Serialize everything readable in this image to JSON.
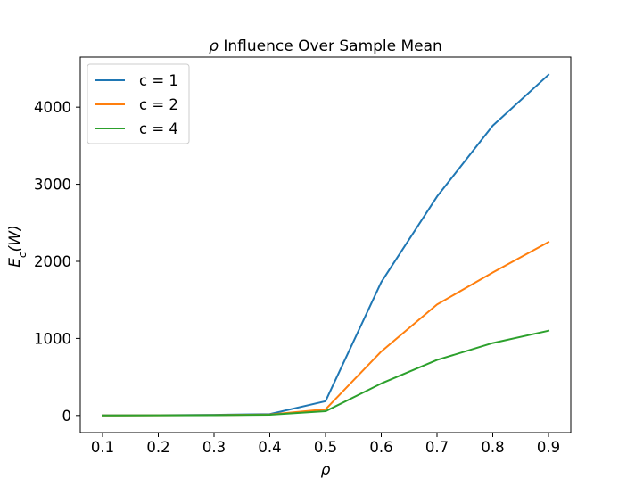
{
  "chart_data": {
    "type": "line",
    "title": "ρ Influence Over Sample Mean",
    "title_symbol": "ρ",
    "title_rest": " Influence Over Sample Mean",
    "xlabel": "ρ",
    "ylabel_base": "E",
    "ylabel_sub": "c",
    "ylabel_arg": "(W)",
    "x": [
      0.1,
      0.2,
      0.3,
      0.4,
      0.5,
      0.6,
      0.7,
      0.8,
      0.9
    ],
    "x_ticks": [
      "0.1",
      "0.2",
      "0.3",
      "0.4",
      "0.5",
      "0.6",
      "0.7",
      "0.8",
      "0.9"
    ],
    "y_ticks": [
      "0",
      "1000",
      "2000",
      "3000",
      "4000"
    ],
    "y_tick_values": [
      0,
      1000,
      2000,
      3000,
      4000
    ],
    "xlim": [
      0.06,
      0.94
    ],
    "ylim": [
      -222,
      4650
    ],
    "grid": false,
    "legend_position": "upper left",
    "series": [
      {
        "name": "c = 1",
        "color": "#1f77b4",
        "values": [
          2,
          4,
          8,
          18,
          185,
          1730,
          2840,
          3760,
          4420
        ]
      },
      {
        "name": "c = 2",
        "color": "#ff7f0e",
        "values": [
          1,
          2,
          5,
          12,
          80,
          830,
          1440,
          1855,
          2250
        ]
      },
      {
        "name": "c = 4",
        "color": "#2ca02c",
        "values": [
          1,
          2,
          4,
          9,
          55,
          415,
          720,
          940,
          1100
        ]
      }
    ]
  }
}
